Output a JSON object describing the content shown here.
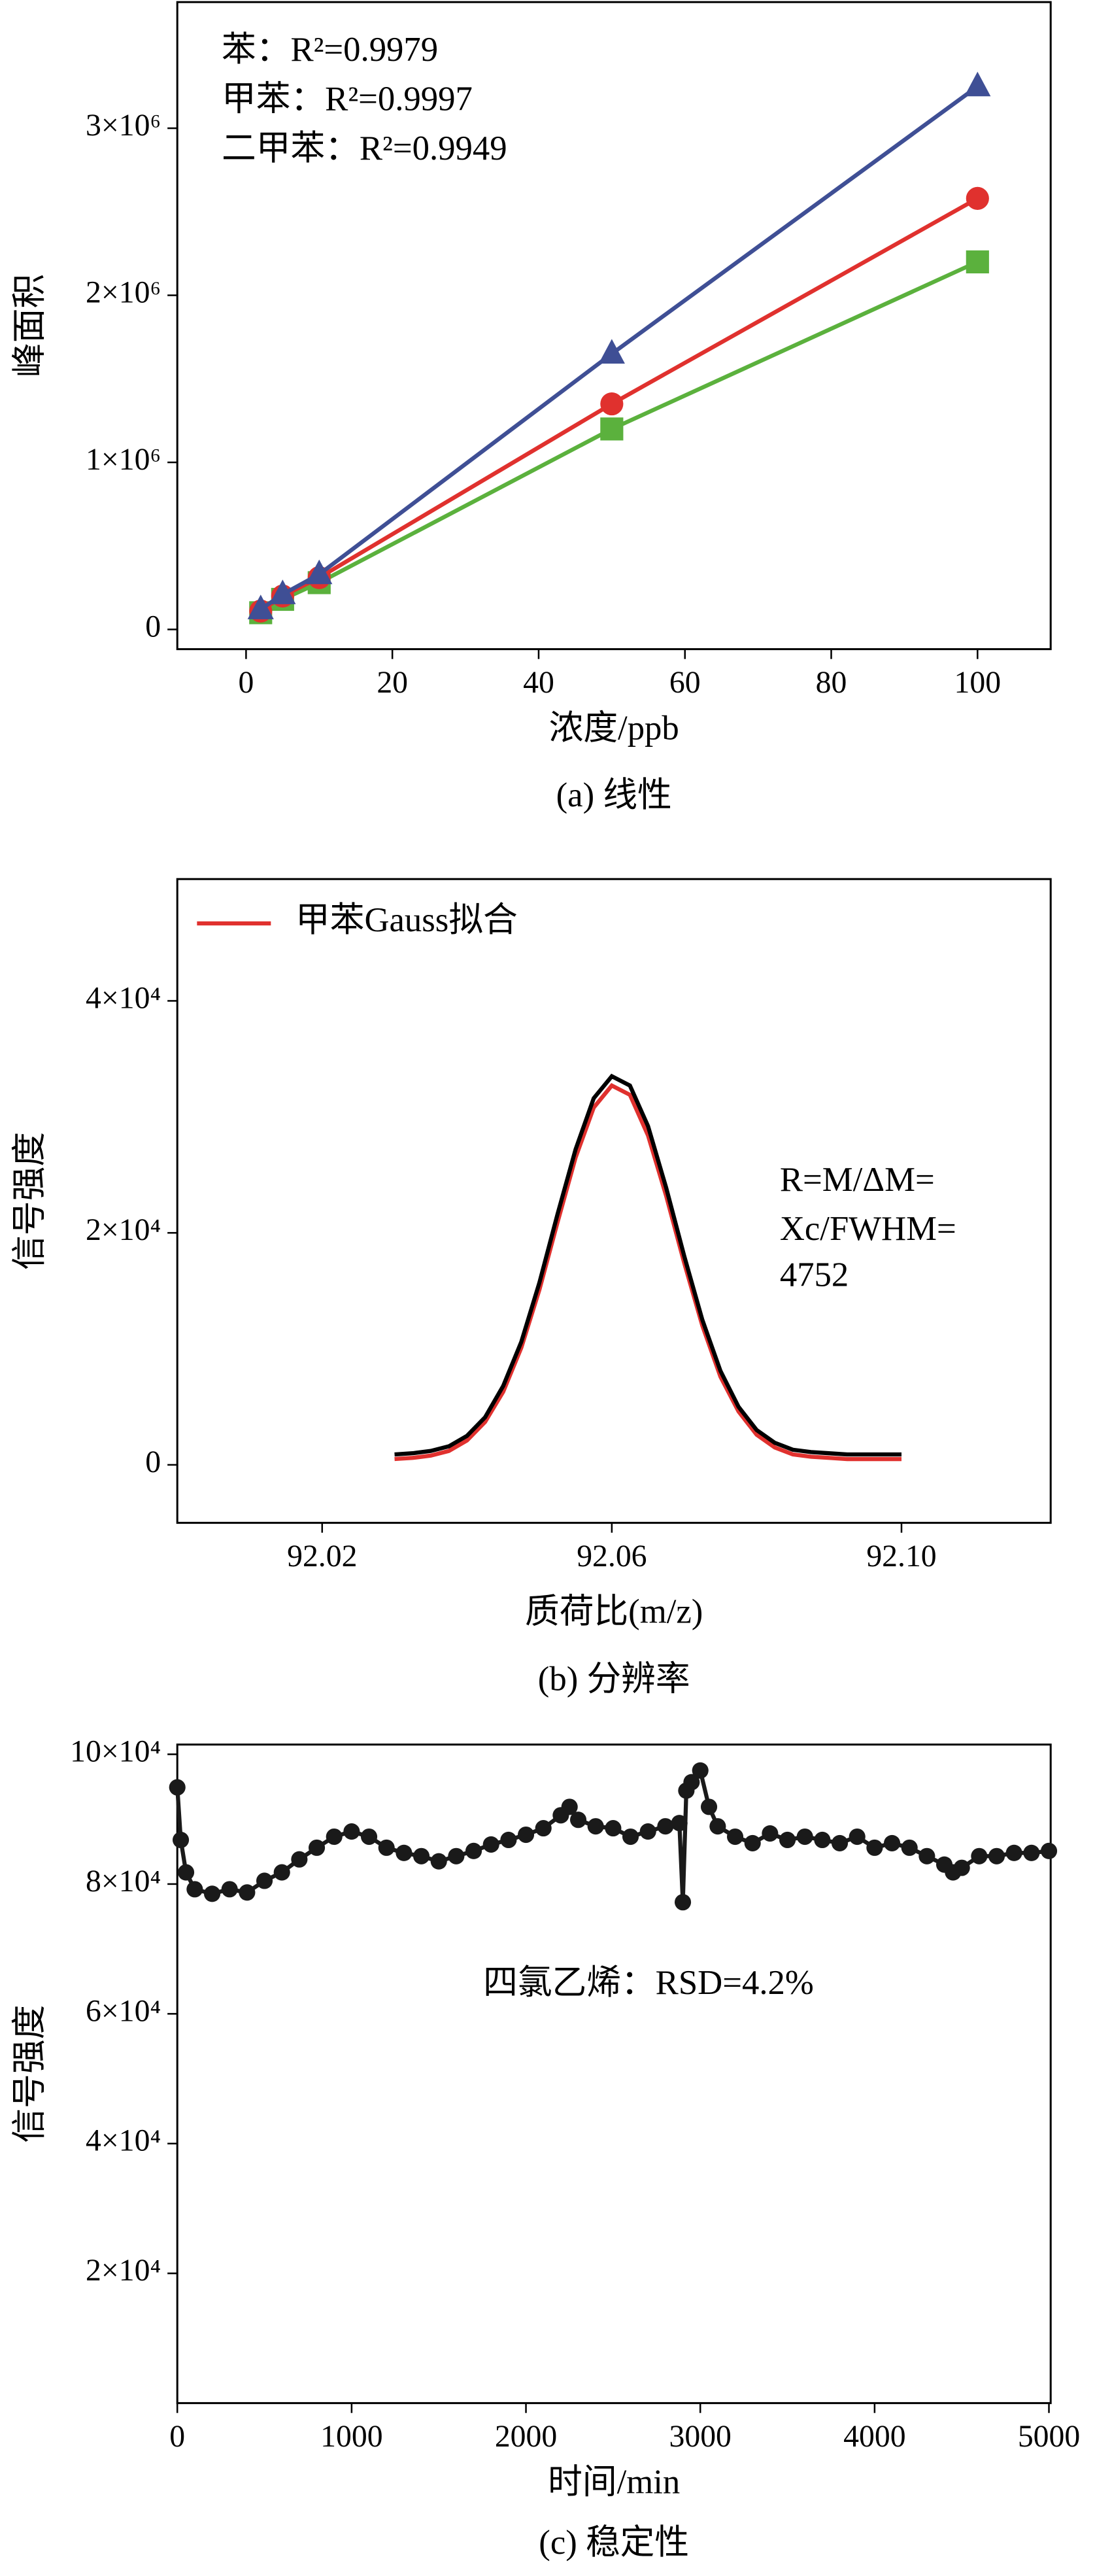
{
  "chart_data": [
    {
      "type": "line",
      "x": [
        2,
        5,
        10,
        50,
        100
      ],
      "series": [
        {
          "name": "苯",
          "color": "#5bb13d",
          "marker": "square",
          "values": [
            100000,
            180000,
            280000,
            1200000,
            2200000
          ]
        },
        {
          "name": "甲苯",
          "color": "#e0312e",
          "marker": "circle",
          "values": [
            110000,
            200000,
            310000,
            1350000,
            2580000
          ]
        },
        {
          "name": "二甲苯",
          "color": "#3f4f95",
          "marker": "triangle",
          "values": [
            120000,
            210000,
            330000,
            1650000,
            3250000
          ]
        }
      ],
      "annotations": [
        {
          "text": "苯：R²=0.9979",
          "color": "#5bb13d"
        },
        {
          "text": "甲苯：R²=0.9997",
          "color": "#e0312e"
        },
        {
          "text": "二甲苯：R²=0.9949",
          "color": "#3f4f95"
        }
      ],
      "xlim": [
        -9.4,
        110
      ],
      "xticks": [
        0,
        20,
        40,
        60,
        80,
        100
      ],
      "ylim": [
        -118000,
        3755000
      ],
      "yticks": [
        0,
        {
          "value": 1000000,
          "label": "1×10⁶"
        },
        {
          "value": 2000000,
          "label": "2×10⁶"
        },
        {
          "value": 3000000,
          "label": "3×10⁶"
        }
      ],
      "xlabel": "浓度/ppb",
      "ylabel": "峰面积",
      "caption": "(a) 线性"
    },
    {
      "type": "line",
      "x": [
        92.03,
        92.0325,
        92.035,
        92.0375,
        92.04,
        92.0425,
        92.045,
        92.0475,
        92.05,
        92.0525,
        92.055,
        92.0575,
        92.06,
        92.0625,
        92.065,
        92.0675,
        92.07,
        92.0725,
        92.075,
        92.0775,
        92.08,
        92.0825,
        92.085,
        92.0875,
        92.09,
        92.0925,
        92.095,
        92.0975,
        92.1
      ],
      "series": [
        {
          "name": "甲苯Gauss拟合",
          "color": "#e0312e",
          "values": [
            500,
            600,
            800,
            1200,
            2100,
            3700,
            6300,
            10100,
            15100,
            20900,
            26500,
            30800,
            32700,
            31900,
            28400,
            23200,
            17400,
            12000,
            7600,
            4600,
            2600,
            1500,
            900,
            700,
            600,
            500,
            500,
            500,
            500
          ]
        },
        {
          "color": "#000000",
          "values": [
            900,
            1000,
            1200,
            1600,
            2500,
            4100,
            6800,
            10600,
            15700,
            21600,
            27200,
            31600,
            33500,
            32700,
            29200,
            23900,
            18000,
            12500,
            8100,
            5000,
            3000,
            1900,
            1300,
            1100,
            1000,
            900,
            900,
            900,
            900
          ]
        }
      ],
      "legend": "upper left",
      "annotations": [
        {
          "text": "R=M/ΔM=",
          "color": "#e0312e"
        },
        {
          "text": "Xc/FWHM=",
          "color": "#e0312e"
        },
        {
          "text": "4752",
          "color": "#e0312e"
        }
      ],
      "xlim": [
        92.0,
        92.1206
      ],
      "xticks": [
        92.02,
        92.06,
        {
          "value": 92.1,
          "label": "92.10"
        }
      ],
      "ylim": [
        -5000,
        50500
      ],
      "yticks": [
        0,
        {
          "value": 20000,
          "label": "2×10⁴"
        },
        {
          "value": 40000,
          "label": "4×10⁴"
        }
      ],
      "xlabel": "质荷比(m/z)",
      "ylabel": "信号强度",
      "caption": "(b) 分辨率"
    },
    {
      "type": "line",
      "x": [
        0,
        20,
        50,
        100,
        200,
        300,
        400,
        500,
        600,
        700,
        800,
        900,
        1000,
        1100,
        1200,
        1300,
        1400,
        1500,
        1600,
        1700,
        1800,
        1900,
        2000,
        2100,
        2200,
        2250,
        2300,
        2400,
        2500,
        2600,
        2700,
        2800,
        2880,
        2900,
        2920,
        2950,
        3000,
        3050,
        3100,
        3200,
        3300,
        3400,
        3500,
        3600,
        3700,
        3800,
        3900,
        4000,
        4100,
        4200,
        4300,
        4400,
        4450,
        4500,
        4600,
        4700,
        4800,
        4900,
        5000
      ],
      "series": [
        {
          "color": "#1a1a1a",
          "marker": "circle",
          "values": [
            94900,
            86800,
            81800,
            79200,
            78500,
            79200,
            78700,
            80500,
            81800,
            83800,
            85600,
            87300,
            88100,
            87300,
            85600,
            84800,
            84300,
            83500,
            84300,
            85100,
            86100,
            86800,
            87600,
            88600,
            90600,
            91900,
            89900,
            88900,
            88600,
            87300,
            88100,
            88900,
            89400,
            77200,
            94400,
            95700,
            97500,
            91900,
            88900,
            87300,
            86300,
            87800,
            86800,
            87300,
            86800,
            86300,
            87300,
            85600,
            86300,
            85600,
            84300,
            83000,
            81800,
            82500,
            84300,
            84300,
            84800,
            84800,
            85100
          ]
        }
      ],
      "annotations": [
        {
          "text": "四氯乙烯：RSD=4.2%",
          "color": "#000000"
        }
      ],
      "xlim": [
        0,
        5010
      ],
      "xticks": [
        0,
        1000,
        2000,
        3000,
        4000,
        5000
      ],
      "ylim": [
        0,
        101500
      ],
      "yticks": [
        {
          "value": 20000,
          "label": "2×10⁴"
        },
        {
          "value": 40000,
          "label": "4×10⁴"
        },
        {
          "value": 60000,
          "label": "6×10⁴"
        },
        {
          "value": 80000,
          "label": "8×10⁴"
        },
        {
          "value": 100000,
          "label": "10×10⁴"
        }
      ],
      "xlabel": "时间/min",
      "ylabel": "信号强度",
      "caption": "(c) 稳定性"
    }
  ]
}
